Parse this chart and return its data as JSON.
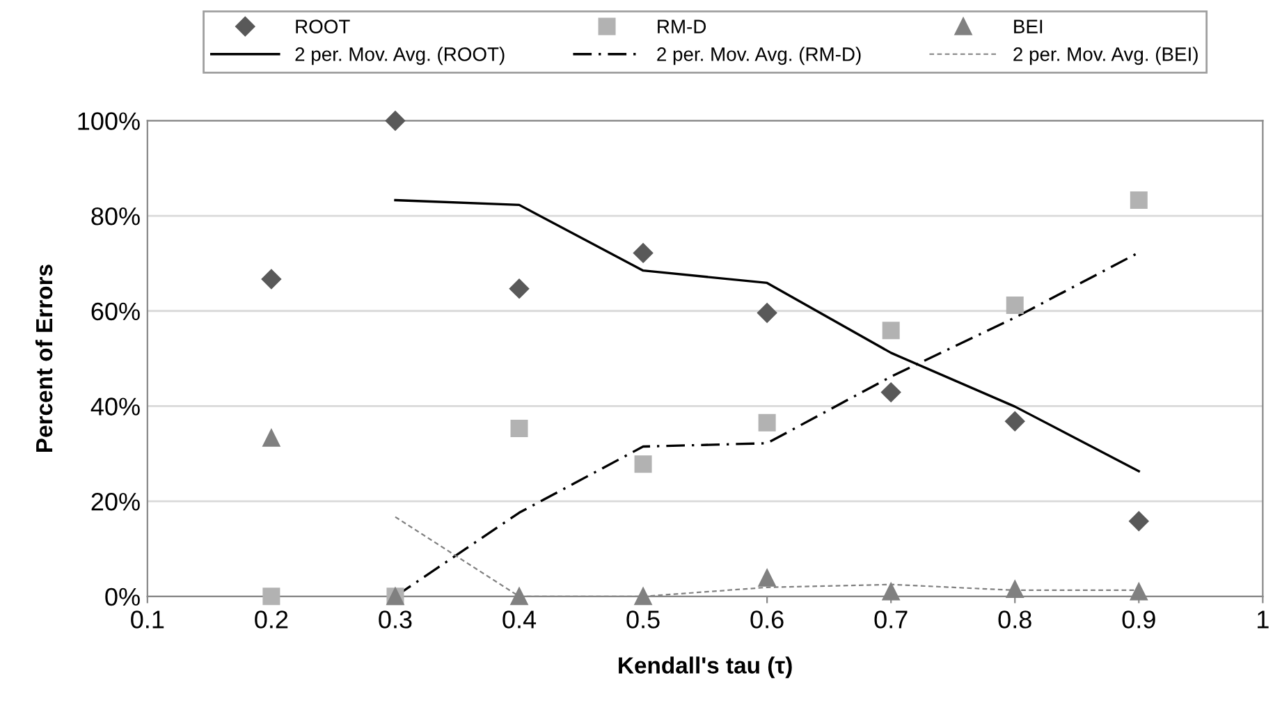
{
  "chart_data": {
    "type": "scatter",
    "xlabel": "Kendall's tau (τ)",
    "ylabel": "Percent of Errors",
    "xlim": [
      0.1,
      1
    ],
    "xticks": [
      0.1,
      0.2,
      0.3,
      0.4,
      0.5,
      0.6,
      0.7,
      0.8,
      0.9,
      1
    ],
    "ylim": [
      0,
      100
    ],
    "yticks": [
      {
        "value": 0,
        "label": "0%"
      },
      {
        "value": 20,
        "label": "20%"
      },
      {
        "value": 40,
        "label": "40%"
      },
      {
        "value": 60,
        "label": "60%"
      },
      {
        "value": 80,
        "label": "80%"
      },
      {
        "value": 100,
        "label": "100%"
      }
    ],
    "grid": "y",
    "legend": "top",
    "series": [
      {
        "name": "ROOT",
        "marker": "diamond",
        "color": "#595959",
        "x": [
          0.2,
          0.3,
          0.4,
          0.5,
          0.6,
          0.7,
          0.8,
          0.9
        ],
        "values": [
          66.7,
          100,
          64.7,
          72.2,
          59.6,
          42.9,
          36.8,
          15.8
        ]
      },
      {
        "name": "RM-D",
        "marker": "square",
        "color": "#b2b2b2",
        "x": [
          0.2,
          0.3,
          0.4,
          0.5,
          0.6,
          0.7,
          0.8,
          0.9
        ],
        "values": [
          0,
          0,
          35.3,
          27.8,
          36.5,
          55.9,
          61.2,
          83.3
        ]
      },
      {
        "name": "BEI",
        "marker": "triangle",
        "color": "#808080",
        "x": [
          0.2,
          0.3,
          0.4,
          0.5,
          0.6,
          0.7,
          0.8,
          0.9
        ],
        "values": [
          33.3,
          0,
          0,
          0,
          3.9,
          1.0,
          1.5,
          1.0
        ]
      },
      {
        "name": "2 per. Mov. Avg. (ROOT)",
        "type": "line",
        "line_style": "solid",
        "color": "#000000",
        "x": [
          0.3,
          0.4,
          0.5,
          0.6,
          0.7,
          0.8,
          0.9
        ],
        "values": [
          83.3,
          82.3,
          68.5,
          65.9,
          51.2,
          39.9,
          26.3
        ]
      },
      {
        "name": "2 per. Mov. Avg. (RM-D)",
        "type": "line",
        "line_style": "dashdot",
        "color": "#000000",
        "x": [
          0.3,
          0.4,
          0.5,
          0.6,
          0.7,
          0.8,
          0.9
        ],
        "values": [
          0,
          17.6,
          31.5,
          32.2,
          46.2,
          58.6,
          72.3
        ]
      },
      {
        "name": "2 per. Mov. Avg. (BEI)",
        "type": "line",
        "line_style": "dashed",
        "color": "#808080",
        "x": [
          0.3,
          0.4,
          0.5,
          0.6,
          0.7,
          0.8,
          0.9
        ],
        "values": [
          16.7,
          0,
          0,
          1.9,
          2.5,
          1.3,
          1.3
        ]
      }
    ]
  }
}
